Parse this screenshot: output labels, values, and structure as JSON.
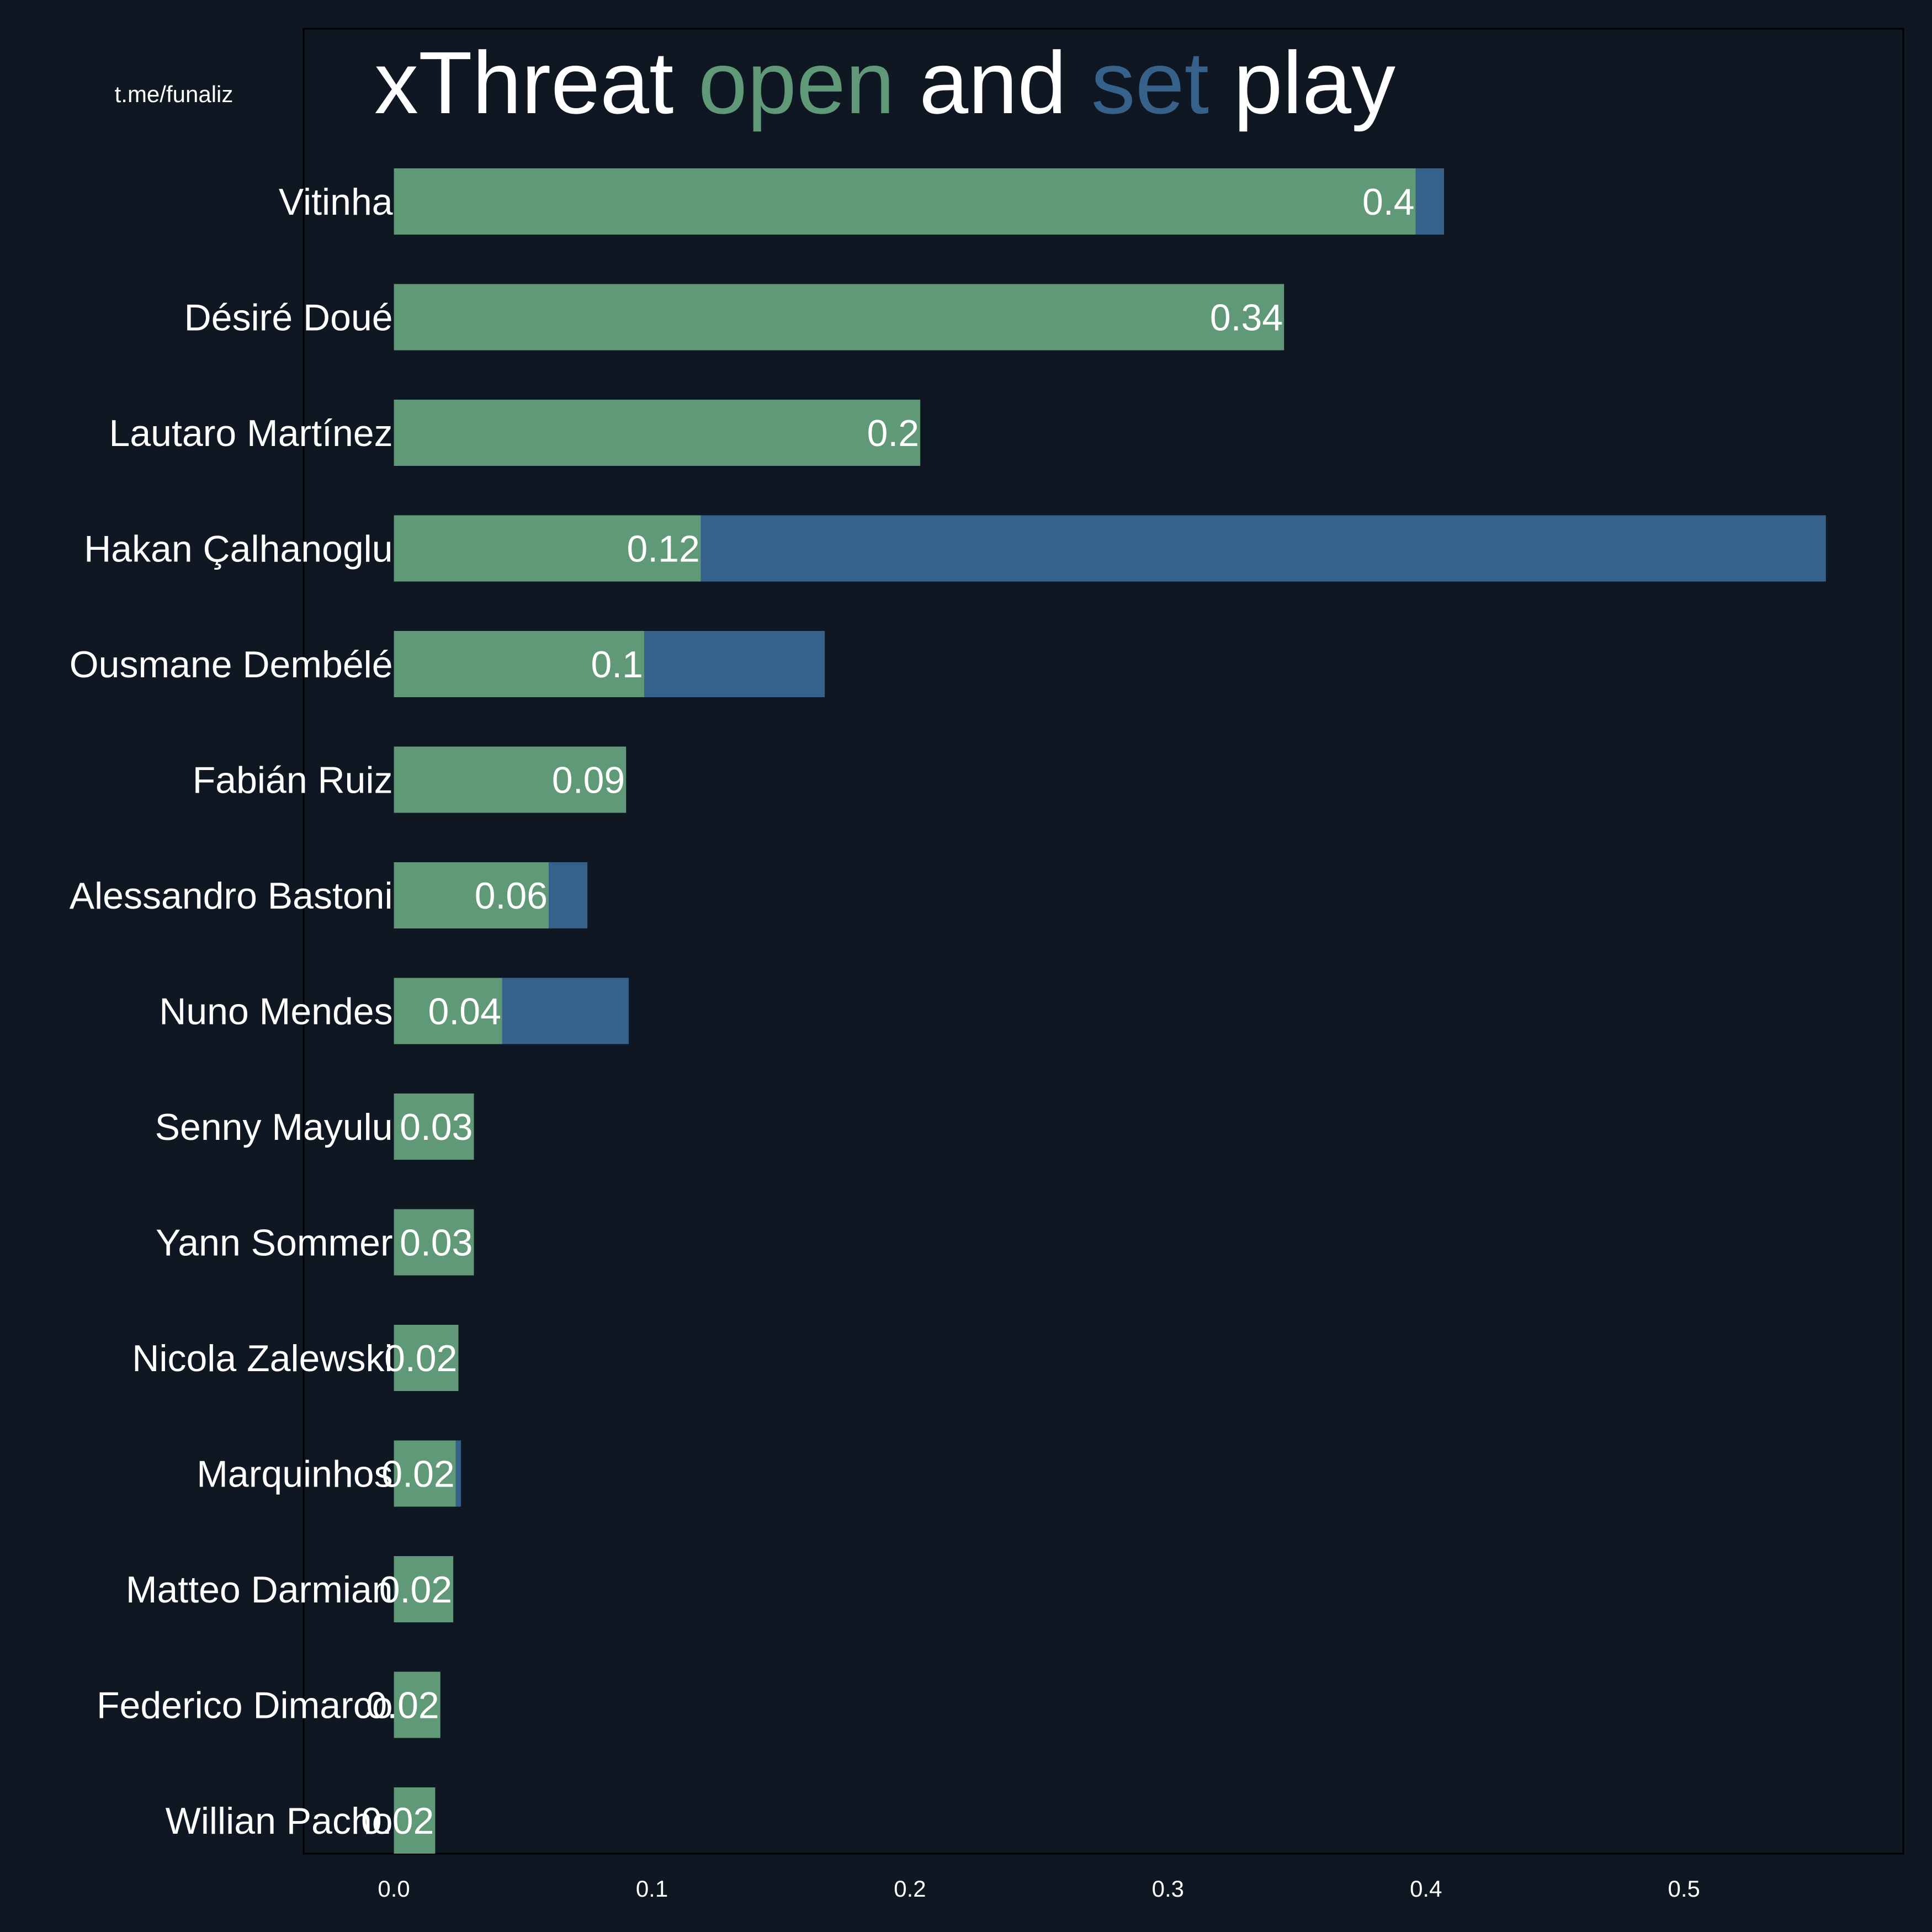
{
  "watermark": "t.me/funaliz",
  "title_parts": [
    {
      "text": "xThreat ",
      "color": "#ffffff"
    },
    {
      "text": "open",
      "color": "#5f9977"
    },
    {
      "text": " and ",
      "color": "#ffffff"
    },
    {
      "text": "set",
      "color": "#35618b"
    },
    {
      "text": " play",
      "color": "#ffffff"
    }
  ],
  "colors": {
    "background": "#0e1722",
    "open_play": "#5f9977",
    "set_play": "#35618b",
    "text": "#ffffff",
    "frame": "#000000"
  },
  "chart_data": {
    "type": "bar",
    "orientation": "horizontal",
    "stacked": true,
    "title": "xThreat open and set play",
    "xlabel": "",
    "ylabel": "",
    "xlim": [
      -0.035,
      0.585
    ],
    "xticks": [
      0.0,
      0.1,
      0.2,
      0.3,
      0.4,
      0.5
    ],
    "xtick_labels": [
      "0.0",
      "0.1",
      "0.2",
      "0.3",
      "0.4",
      "0.5"
    ],
    "grid": false,
    "categories": [
      "Vitinha",
      "Désiré Doué",
      "Lautaro Martínez",
      "Hakan Çalhanoglu",
      "Ousmane Dembélé",
      "Fabián Ruiz",
      "Alessandro Bastoni",
      "Nuno Mendes",
      "Senny Mayulu",
      "Yann Sommer",
      "Nicola Zalewski",
      "Marquinhos",
      "Matteo Darmian",
      "Federico Dimarco",
      "Willian Pacho"
    ],
    "series": [
      {
        "name": "open",
        "color": "#5f9977",
        "values": [
          0.396,
          0.345,
          0.204,
          0.119,
          0.097,
          0.09,
          0.06,
          0.042,
          0.031,
          0.031,
          0.025,
          0.024,
          0.023,
          0.018,
          0.016
        ]
      },
      {
        "name": "set",
        "color": "#35618b",
        "values": [
          0.011,
          0.0,
          0.0,
          0.436,
          0.07,
          0.0,
          0.015,
          0.049,
          0.0,
          0.0,
          0.0,
          0.002,
          0.0,
          0.0,
          0.0
        ]
      }
    ],
    "data_labels": [
      "0.4",
      "0.34",
      "0.2",
      "0.12",
      "0.1",
      "0.09",
      "0.06",
      "0.04",
      "0.03",
      "0.03",
      "0.02",
      "0.02",
      "0.02",
      "0.02",
      "0.02"
    ]
  }
}
